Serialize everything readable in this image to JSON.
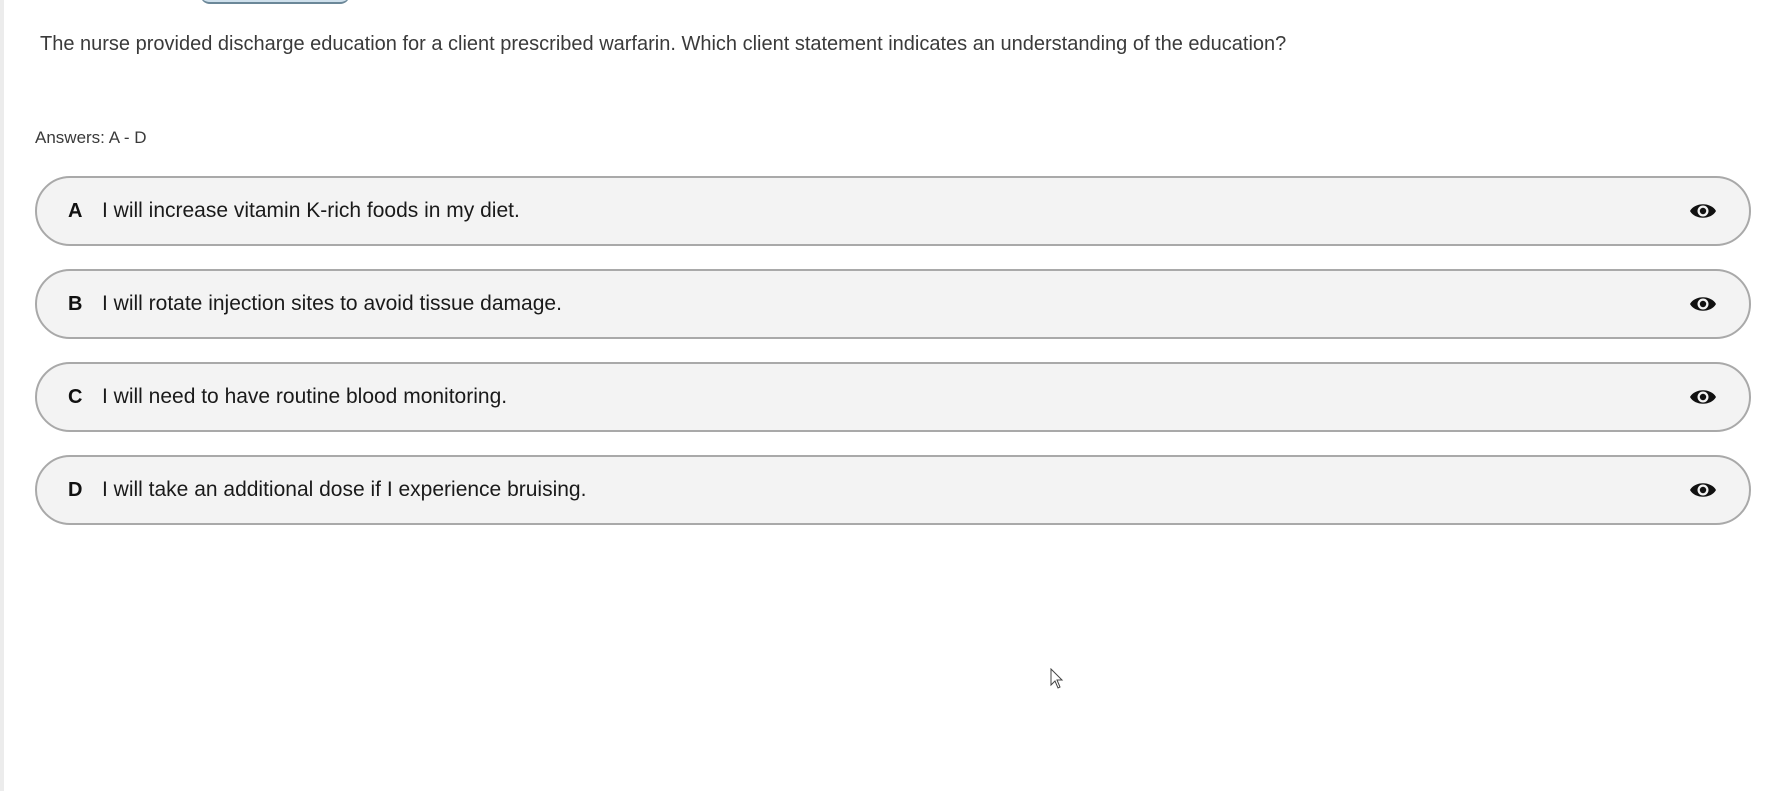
{
  "question": "The nurse provided discharge education for a client prescribed warfarin. Which client statement indicates an understanding of the education?",
  "answers_label": "Answers: A - D",
  "options": [
    {
      "letter": "A",
      "text": "I will increase vitamin K-rich foods in my diet.",
      "icon": "eye-icon"
    },
    {
      "letter": "B",
      "text": "I will rotate injection sites to avoid tissue damage.",
      "icon": "eye-icon"
    },
    {
      "letter": "C",
      "text": "I will need to have routine blood monitoring.",
      "icon": "eye-icon"
    },
    {
      "letter": "D",
      "text": "I will take an additional dose if I experience bruising.",
      "icon": "eye-icon"
    }
  ],
  "colors": {
    "option_bg": "#f3f3f3",
    "option_border": "#a9a9a9",
    "text": "#3a3a3a"
  }
}
